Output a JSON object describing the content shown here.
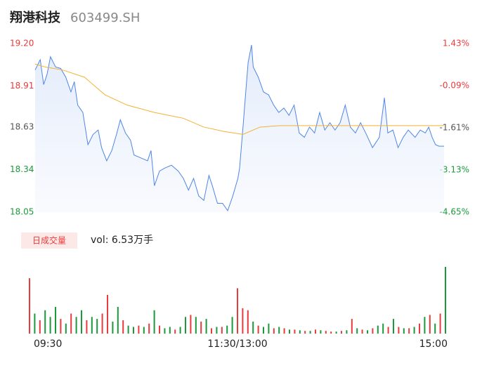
{
  "header": {
    "name": "翔港科技",
    "code": "603499.SH"
  },
  "chart_data": [
    {
      "type": "line",
      "ylim": [
        18.05,
        19.2
      ],
      "yticks": [
        {
          "value": 19.2,
          "label": "19.20"
        },
        18.91,
        18.63,
        18.34,
        18.05
      ],
      "ytick_colors": [
        "#e83b3b",
        "#e83b3b",
        "#555555",
        "#1a9a3a",
        "#1a9a3a"
      ],
      "y2lim": [
        -4.65,
        1.43
      ],
      "y2ticks": [
        {
          "value": 1.43,
          "label": "1.43%"
        },
        {
          "value": -0.09,
          "label": "-0.09%"
        },
        {
          "value": -1.61,
          "label": "-1.61%"
        },
        {
          "value": -3.13,
          "label": "-3.13%"
        },
        {
          "value": -4.65,
          "label": "-4.65%"
        }
      ],
      "xlim": [
        0,
        240
      ],
      "series": [
        {
          "color": "#4f86e8",
          "fill": true,
          "x": [
            0,
            3,
            5,
            7,
            9,
            12,
            15,
            18,
            21,
            23,
            25,
            28,
            31,
            34,
            37,
            39,
            42,
            45,
            48,
            50,
            53,
            56,
            58,
            62,
            66,
            68,
            70,
            73,
            76,
            80,
            84,
            87,
            90,
            93,
            96,
            99,
            102,
            104,
            107,
            110,
            113,
            116,
            119,
            120,
            122,
            123,
            125,
            127,
            128,
            131,
            134,
            137,
            140,
            143,
            146,
            149,
            152,
            155,
            158,
            161,
            164,
            167,
            170,
            173,
            176,
            179,
            182,
            185,
            188,
            191,
            194,
            198,
            202,
            205,
            207,
            210,
            213,
            216,
            219,
            223,
            226,
            229,
            231,
            233,
            235,
            237,
            240
          ],
          "values": [
            19.02,
            19.09,
            18.92,
            18.99,
            19.11,
            19.04,
            19.03,
            18.97,
            18.87,
            18.94,
            18.78,
            18.73,
            18.51,
            18.58,
            18.61,
            18.49,
            18.4,
            18.47,
            18.59,
            18.68,
            18.59,
            18.54,
            18.44,
            18.42,
            18.4,
            18.47,
            18.23,
            18.33,
            18.35,
            18.37,
            18.33,
            18.28,
            18.2,
            18.28,
            18.16,
            18.13,
            18.3,
            18.23,
            18.11,
            18.11,
            18.06,
            18.16,
            18.28,
            18.35,
            18.63,
            18.78,
            19.07,
            19.19,
            19.04,
            18.97,
            18.87,
            18.85,
            18.78,
            18.73,
            18.76,
            18.71,
            18.78,
            18.59,
            18.56,
            18.63,
            18.59,
            18.73,
            18.61,
            18.66,
            18.61,
            18.66,
            18.78,
            18.63,
            18.59,
            18.66,
            18.59,
            18.49,
            18.56,
            18.83,
            18.59,
            18.61,
            18.49,
            18.56,
            18.61,
            18.56,
            18.61,
            18.59,
            18.63,
            18.56,
            18.51,
            18.5,
            18.5
          ]
        },
        {
          "color": "#f2b233",
          "fill": false,
          "x": [
            0,
            6,
            16,
            29,
            41,
            54,
            70,
            87,
            99,
            111,
            122,
            132,
            144,
            240
          ],
          "values": [
            19.06,
            19.04,
            19.02,
            18.97,
            18.85,
            18.78,
            18.73,
            18.69,
            18.63,
            18.6,
            18.58,
            18.63,
            18.64,
            18.64
          ]
        }
      ]
    },
    {
      "type": "bar",
      "title": "日成交量",
      "subtitle": "vol: 6.53万手",
      "xlim": [
        0,
        240
      ],
      "ylim": [
        0,
        100
      ],
      "xticks": [
        {
          "value": 0,
          "label": "09:30"
        },
        {
          "value": 120,
          "label": "11:30/13:00"
        },
        {
          "value": 240,
          "label": "15:00"
        }
      ],
      "up_color": "#e83b3b",
      "down_color": "#1a9a3a",
      "x": [
        0,
        3,
        6,
        9,
        12,
        15,
        18,
        21,
        24,
        27,
        30,
        33,
        36,
        39,
        42,
        45,
        48,
        51,
        54,
        57,
        60,
        63,
        66,
        69,
        72,
        75,
        78,
        81,
        84,
        87,
        90,
        93,
        96,
        99,
        102,
        105,
        108,
        111,
        114,
        117,
        120,
        123,
        126,
        129,
        132,
        135,
        138,
        141,
        144,
        147,
        150,
        153,
        156,
        159,
        162,
        165,
        168,
        171,
        174,
        177,
        180,
        183,
        186,
        189,
        192,
        195,
        198,
        201,
        204,
        207,
        210,
        213,
        216,
        219,
        222,
        225,
        228,
        231,
        234,
        237,
        240
      ],
      "values": [
        83,
        30,
        20,
        35,
        25,
        40,
        22,
        15,
        30,
        25,
        35,
        20,
        25,
        22,
        30,
        58,
        18,
        40,
        20,
        12,
        10,
        12,
        10,
        15,
        35,
        12,
        8,
        10,
        6,
        10,
        25,
        28,
        25,
        18,
        22,
        8,
        10,
        10,
        12,
        25,
        68,
        38,
        35,
        18,
        12,
        10,
        15,
        8,
        10,
        8,
        6,
        6,
        5,
        4,
        4,
        6,
        5,
        4,
        3,
        3,
        4,
        5,
        22,
        8,
        6,
        5,
        8,
        12,
        15,
        10,
        22,
        10,
        8,
        8,
        10,
        15,
        25,
        28,
        15,
        30,
        100
      ],
      "directions": [
        "up",
        "down",
        "up",
        "down",
        "down",
        "down",
        "up",
        "down",
        "up",
        "down",
        "down",
        "up",
        "down",
        "down",
        "up",
        "up",
        "down",
        "down",
        "up",
        "down",
        "down",
        "up",
        "down",
        "up",
        "down",
        "up",
        "down",
        "down",
        "up",
        "down",
        "down",
        "up",
        "down",
        "up",
        "down",
        "up",
        "down",
        "up",
        "down",
        "down",
        "up",
        "up",
        "up",
        "down",
        "up",
        "down",
        "down",
        "up",
        "down",
        "up",
        "down",
        "up",
        "down",
        "up",
        "down",
        "up",
        "down",
        "up",
        "up",
        "down",
        "up",
        "down",
        "up",
        "down",
        "up",
        "down",
        "up",
        "down",
        "down",
        "up",
        "down",
        "up",
        "down",
        "up",
        "down",
        "up",
        "down",
        "up",
        "down",
        "up",
        "down"
      ]
    }
  ]
}
